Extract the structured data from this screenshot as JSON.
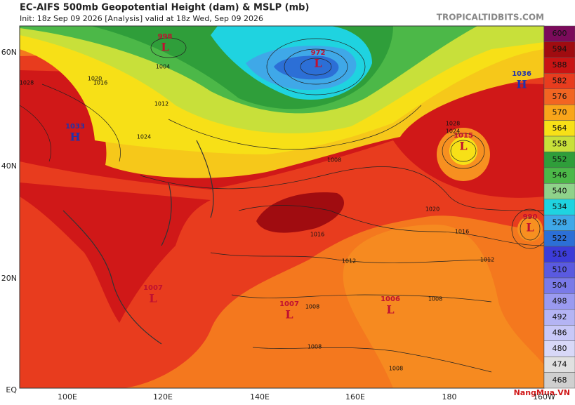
{
  "header": {
    "title": "EC-AIFS 500mb Geopotential Height (dam) & MSLP (mb)",
    "init": "Init: 18z Sep 09 2026   [Analysis]   valid at 18z Wed, Sep 09 2026",
    "site": "TROPICALTIDBITS.COM"
  },
  "lat_labels": [
    "60N",
    "40N",
    "20N",
    "EQ"
  ],
  "lon_labels": [
    "100E",
    "120E",
    "140E",
    "160E",
    "180",
    "160W"
  ],
  "colorbar": {
    "ticks": [
      "600",
      "594",
      "588",
      "582",
      "576",
      "570",
      "564",
      "558",
      "552",
      "546",
      "540",
      "534",
      "528",
      "522",
      "516",
      "510",
      "504",
      "498",
      "492",
      "486",
      "480",
      "474",
      "468"
    ],
    "colors": [
      "#7b0b5b",
      "#a00c10",
      "#c81414",
      "#e83c1e",
      "#f26522",
      "#f9a51a",
      "#f7e017",
      "#c8e03a",
      "#2f9e3a",
      "#4cb848",
      "#8fd28a",
      "#1fd3e0",
      "#3fa8e8",
      "#2c6fd6",
      "#3c3cd8",
      "#5a5ae0",
      "#7a7ae8",
      "#9a9af0",
      "#b4b4f4",
      "#c8c8f8",
      "#d8d8f8",
      "#e0e0e0",
      "#cfcfcf"
    ]
  },
  "pressure_centers": [
    {
      "letter": "L",
      "value": "998"
    },
    {
      "letter": "L",
      "value": "972"
    },
    {
      "letter": "H",
      "value": "1036"
    },
    {
      "letter": "H",
      "value": "1033"
    },
    {
      "letter": "L",
      "value": "1015"
    },
    {
      "letter": "L",
      "value": "990"
    },
    {
      "letter": "L",
      "value": "1007"
    },
    {
      "letter": "L",
      "value": "1007"
    },
    {
      "letter": "L",
      "value": "1006"
    }
  ],
  "isobar_labels": [
    "1028",
    "1020",
    "1016",
    "1012",
    "1024",
    "1004",
    "1008",
    "1016",
    "1012",
    "1020",
    "1016",
    "1012",
    "1008",
    "1008",
    "1008",
    "1008",
    "1028",
    "1024"
  ],
  "watermark": "NangMua.VN"
}
